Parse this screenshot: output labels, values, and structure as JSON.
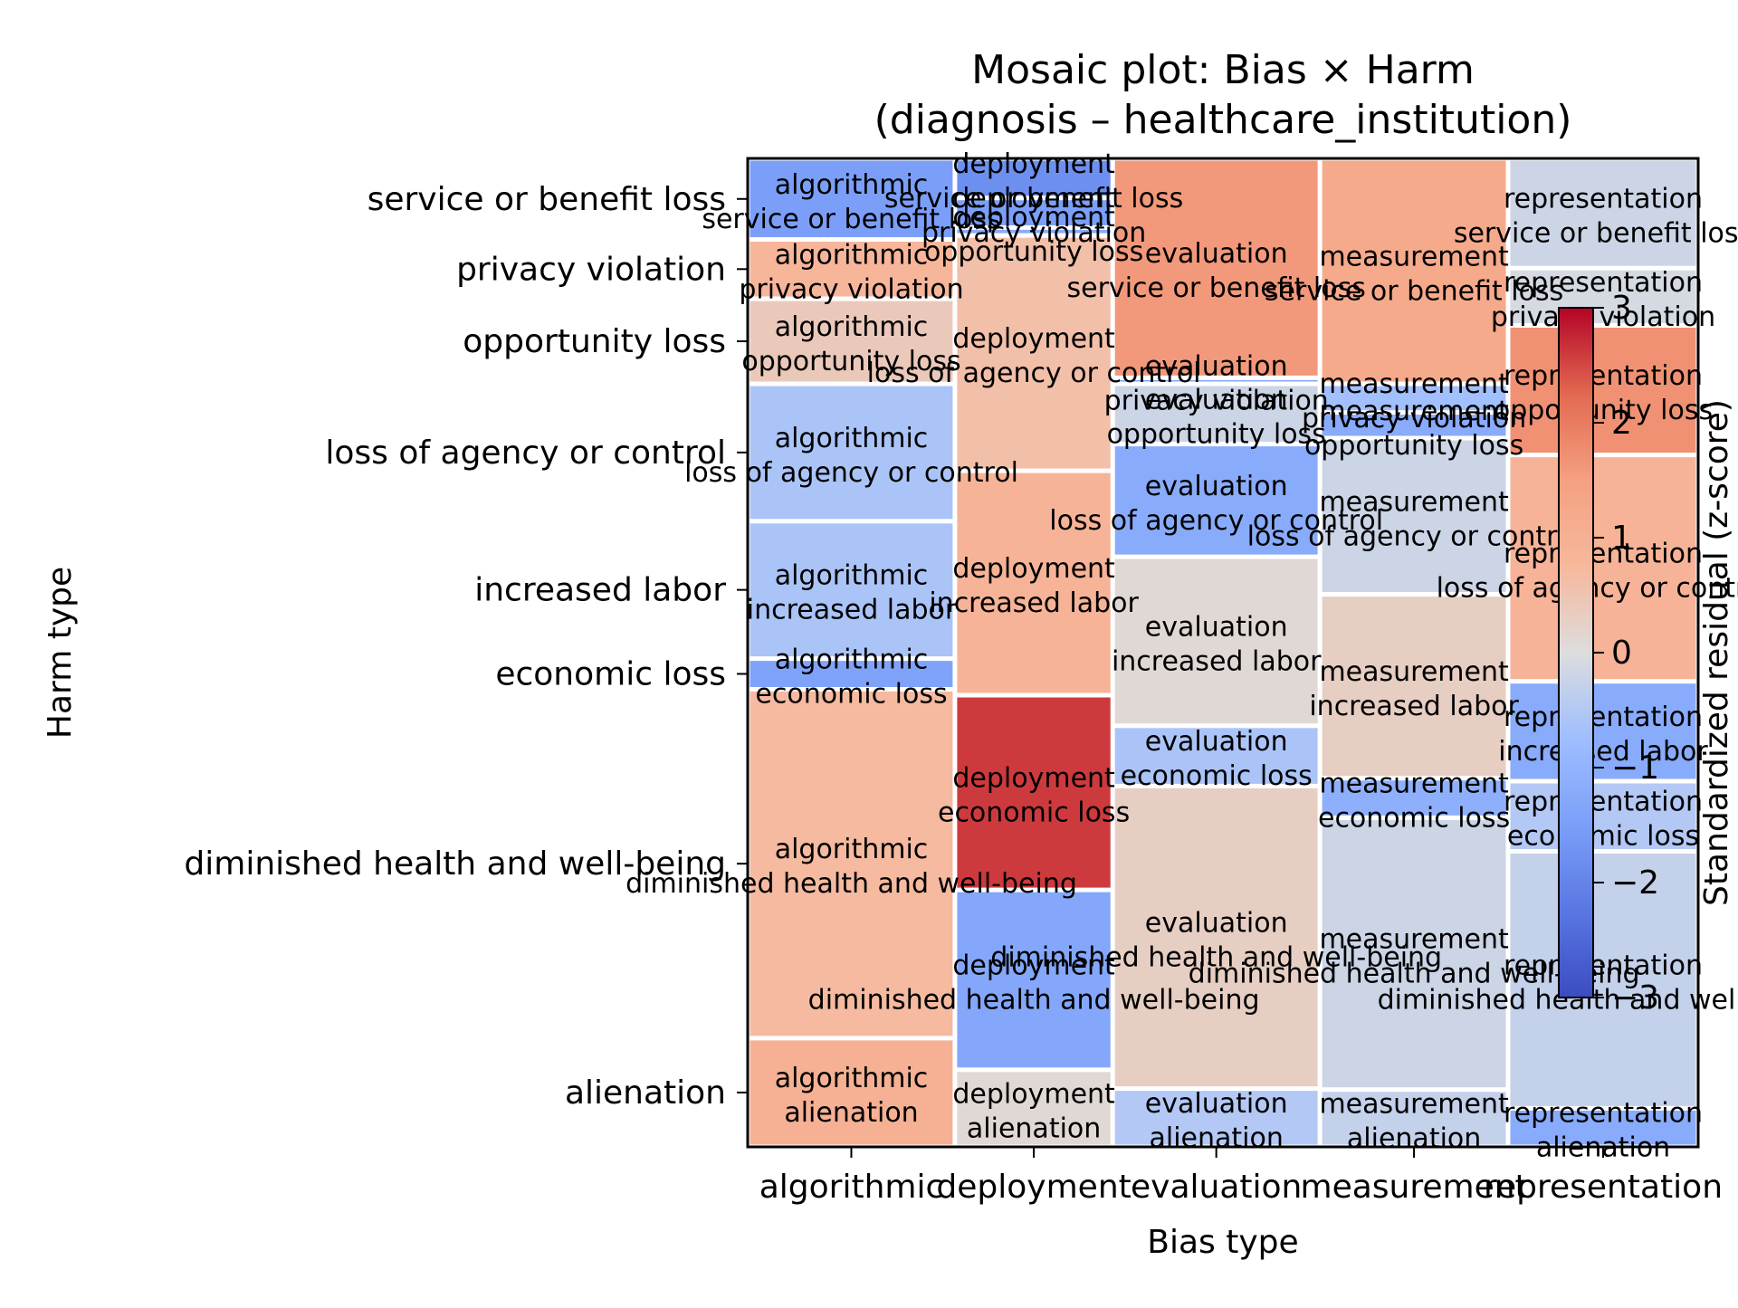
{
  "chart_data": {
    "type": "heatmap",
    "subtype": "mosaic",
    "title": "Mosaic plot: Bias × Harm",
    "subtitle": "(diagnosis – healthcare_institution)",
    "xlabel": "Bias type",
    "ylabel": "Harm type",
    "colorbar_label": "Standardized residual (z-score)",
    "colormap": "coolwarm",
    "color_range": [
      -3,
      3
    ],
    "colorbar_ticks": [
      "3",
      "2",
      "1",
      "0",
      "−1",
      "−2",
      "−3"
    ],
    "colorbar_tick_values": [
      3,
      2,
      1,
      0,
      -1,
      -2,
      -3
    ],
    "colors": {
      "cold": "#3b4cc0",
      "neutral": "#dddddd",
      "hot": "#b40426",
      "cell_border": "#ffffff"
    },
    "bias_types": [
      "algorithmic",
      "deployment",
      "evaluation",
      "measurement",
      "representation"
    ],
    "bias_shares": [
      0.218,
      0.166,
      0.218,
      0.198,
      0.2
    ],
    "harm_types": [
      "service or benefit loss",
      "privacy violation",
      "opportunity loss",
      "loss of agency or control",
      "increased labor",
      "economic loss",
      "diminished health and well-being",
      "alienation"
    ],
    "y_tick_labels": [
      "service or benefit loss",
      "privacy violation",
      "opportunity loss",
      "loss of agency or control",
      "increased labor",
      "economic loss",
      "diminished health and well-being",
      "alienation"
    ],
    "columns": [
      {
        "bias": "algorithmic",
        "cells": [
          {
            "harm": "service or benefit loss",
            "share": 0.082,
            "z": -1.5,
            "line1": "algorithmic",
            "line2": "service or benefit loss"
          },
          {
            "harm": "privacy violation",
            "share": 0.06,
            "z": 0.8,
            "line1": "algorithmic",
            "line2": "privacy violation"
          },
          {
            "harm": "opportunity loss",
            "share": 0.086,
            "z": 0.4,
            "line1": "algorithmic",
            "line2": "opportunity loss"
          },
          {
            "harm": "loss of agency or control",
            "share": 0.139,
            "z": -0.6,
            "line1": "algorithmic",
            "line2": "loss of agency or control"
          },
          {
            "harm": "increased labor",
            "share": 0.139,
            "z": -0.6,
            "line1": "algorithmic",
            "line2": "increased labor"
          },
          {
            "harm": "economic loss",
            "share": 0.031,
            "z": -1.4,
            "line1": "algorithmic",
            "line2": "economic loss"
          },
          {
            "harm": "diminished health and well-being",
            "share": 0.353,
            "z": 0.7,
            "line1": "algorithmic",
            "line2": "diminished health and well-being"
          },
          {
            "harm": "alienation",
            "share": 0.11,
            "z": 1.0,
            "line1": "algorithmic",
            "line2": "alienation"
          }
        ]
      },
      {
        "bias": "deployment",
        "cells": [
          {
            "harm": "service or benefit loss",
            "share": 0.04,
            "z": -1.8,
            "line1": "deployment",
            "line2": "service or benefit loss"
          },
          {
            "harm": "privacy violation",
            "share": 0.03,
            "z": -1.5,
            "line1": "deployment",
            "line2": "privacy violation"
          },
          {
            "harm": "opportunity loss",
            "share": 0.008,
            "z": -1.2,
            "line1": "deployment",
            "line2": "opportunity loss"
          },
          {
            "harm": "loss of agency or control",
            "share": 0.238,
            "z": 0.6,
            "line1": "deployment",
            "line2": "loss of agency or control"
          },
          {
            "harm": "increased labor",
            "share": 0.227,
            "z": 0.9,
            "line1": "deployment",
            "line2": "increased labor"
          },
          {
            "harm": "economic loss",
            "share": 0.197,
            "z": 2.6,
            "line1": "deployment",
            "line2": "economic loss"
          },
          {
            "harm": "diminished health and well-being",
            "share": 0.182,
            "z": -1.3,
            "line1": "deployment",
            "line2": "diminished health and well-being"
          },
          {
            "harm": "alienation",
            "share": 0.078,
            "z": 0.1,
            "line1": "deployment",
            "line2": "alienation"
          }
        ]
      },
      {
        "bias": "evaluation",
        "cells": [
          {
            "harm": "service or benefit loss",
            "share": 0.222,
            "z": 1.6,
            "line1": "evaluation",
            "line2": "service or benefit loss"
          },
          {
            "harm": "privacy violation",
            "share": 0.006,
            "z": -1.3,
            "line1": "evaluation",
            "line2": "privacy violation"
          },
          {
            "harm": "opportunity loss",
            "share": 0.061,
            "z": -0.2,
            "line1": "evaluation",
            "line2": "opportunity loss"
          },
          {
            "harm": "loss of agency or control",
            "share": 0.114,
            "z": -1.2,
            "line1": "evaluation",
            "line2": "loss of agency or control"
          },
          {
            "harm": "increased labor",
            "share": 0.171,
            "z": 0.1,
            "line1": "evaluation",
            "line2": "increased labor"
          },
          {
            "harm": "economic loss",
            "share": 0.061,
            "z": -0.6,
            "line1": "evaluation",
            "line2": "economic loss"
          },
          {
            "harm": "diminished health and well-being",
            "share": 0.306,
            "z": 0.3,
            "line1": "evaluation",
            "line2": "diminished health and well-being"
          },
          {
            "harm": "alienation",
            "share": 0.059,
            "z": -0.5,
            "line1": "evaluation",
            "line2": "alienation"
          }
        ]
      },
      {
        "bias": "measurement",
        "cells": [
          {
            "harm": "service or benefit loss",
            "share": 0.228,
            "z": 1.2,
            "line1": "measurement",
            "line2": "service or benefit loss"
          },
          {
            "harm": "privacy violation",
            "share": 0.029,
            "z": -0.7,
            "line1": "measurement",
            "line2": "privacy violation"
          },
          {
            "harm": "opportunity loss",
            "share": 0.026,
            "z": -1.2,
            "line1": "measurement",
            "line2": "opportunity loss"
          },
          {
            "harm": "loss of agency or control",
            "share": 0.158,
            "z": -0.2,
            "line1": "measurement",
            "line2": "loss of agency or control"
          },
          {
            "harm": "increased labor",
            "share": 0.186,
            "z": 0.3,
            "line1": "measurement",
            "line2": "increased labor"
          },
          {
            "harm": "economic loss",
            "share": 0.04,
            "z": -1.1,
            "line1": "measurement",
            "line2": "economic loss"
          },
          {
            "harm": "diminished health and well-being",
            "share": 0.275,
            "z": -0.2,
            "line1": "measurement",
            "line2": "diminished health and well-being"
          },
          {
            "harm": "alienation",
            "share": 0.058,
            "z": -0.3,
            "line1": "measurement",
            "line2": "alienation"
          }
        ]
      },
      {
        "bias": "representation",
        "cells": [
          {
            "harm": "service or benefit loss",
            "share": 0.111,
            "z": -0.2,
            "line1": "representation",
            "line2": "service or benefit loss"
          },
          {
            "harm": "privacy violation",
            "share": 0.058,
            "z": -0.1,
            "line1": "representation",
            "line2": "privacy violation"
          },
          {
            "harm": "opportunity loss",
            "share": 0.131,
            "z": 1.7,
            "line1": "representation",
            "line2": "opportunity loss"
          },
          {
            "harm": "loss of agency or control",
            "share": 0.229,
            "z": 0.9,
            "line1": "representation",
            "line2": "loss of agency or control"
          },
          {
            "harm": "increased labor",
            "share": 0.101,
            "z": -1.2,
            "line1": "representation",
            "line2": "increased labor"
          },
          {
            "harm": "economic loss",
            "share": 0.071,
            "z": -0.5,
            "line1": "representation",
            "line2": "economic loss"
          },
          {
            "harm": "diminished health and well-being",
            "share": 0.26,
            "z": -0.3,
            "line1": "representation",
            "line2": "diminished health and well-being"
          },
          {
            "harm": "alienation",
            "share": 0.039,
            "z": -1.2,
            "line1": "representation",
            "line2": "alienation"
          }
        ]
      }
    ]
  }
}
